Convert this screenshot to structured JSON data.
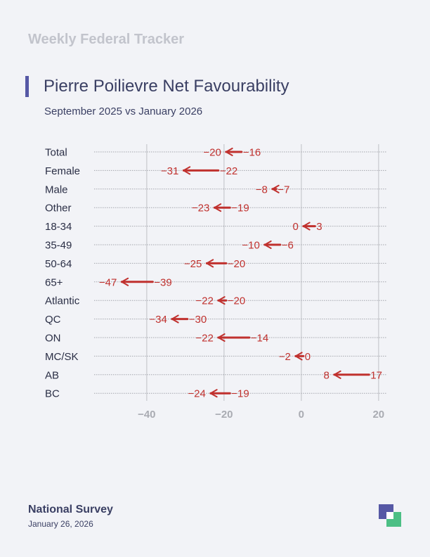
{
  "header": {
    "tracker_title": "Weekly Federal Tracker",
    "chart_title": "Pierre Poilievre Net Favourability",
    "chart_subtitle": "September 2025 vs January 2026"
  },
  "footer": {
    "source": "National Survey",
    "date": "January 26, 2026"
  },
  "colors": {
    "decline": "#c0312e",
    "improve": "#4cb88b",
    "brand_purple": "#5658a5",
    "brand_green": "#4cbf85",
    "text_dark": "#3a3f63",
    "tick_gray": "#a9abb2"
  },
  "chart_data": {
    "type": "arrow-dumbbell",
    "title": "Pierre Poilievre Net Favourability",
    "subtitle": "September 2025 vs January 2026",
    "xlim": [
      -55,
      20
    ],
    "x_ticks": [
      -40,
      -20,
      0,
      20
    ],
    "x_tick_labels": [
      "−40",
      "−20",
      "0",
      "20"
    ],
    "grid": true,
    "categories": [
      "Total",
      "Female",
      "Male",
      "Other",
      "18-34",
      "35-49",
      "50-64",
      "65+",
      "Atlantic",
      "QC",
      "ON",
      "MC/SK",
      "AB",
      "BC"
    ],
    "series": [
      {
        "values": [
          -16,
          -22,
          -7,
          -19,
          3,
          -6,
          -20,
          -39,
          -20,
          -30,
          -14,
          0,
          17,
          -19
        ]
      },
      {
        "values": [
          -20,
          -31,
          -8,
          -23,
          0,
          -10,
          -25,
          -47,
          -22,
          -34,
          -22,
          -2,
          8,
          -24
        ]
      }
    ],
    "start_labels": [
      "−16",
      "−22",
      "−7",
      "−19",
      "3",
      "−6",
      "−20",
      "−39",
      "−20",
      "−30",
      "−14",
      "0",
      "17",
      "−19"
    ],
    "end_labels": [
      "−20",
      "−31",
      "−8",
      "−23",
      "0",
      "−10",
      "−25",
      "−47",
      "−22",
      "−34",
      "−22",
      "−2",
      "8",
      "−24"
    ]
  }
}
